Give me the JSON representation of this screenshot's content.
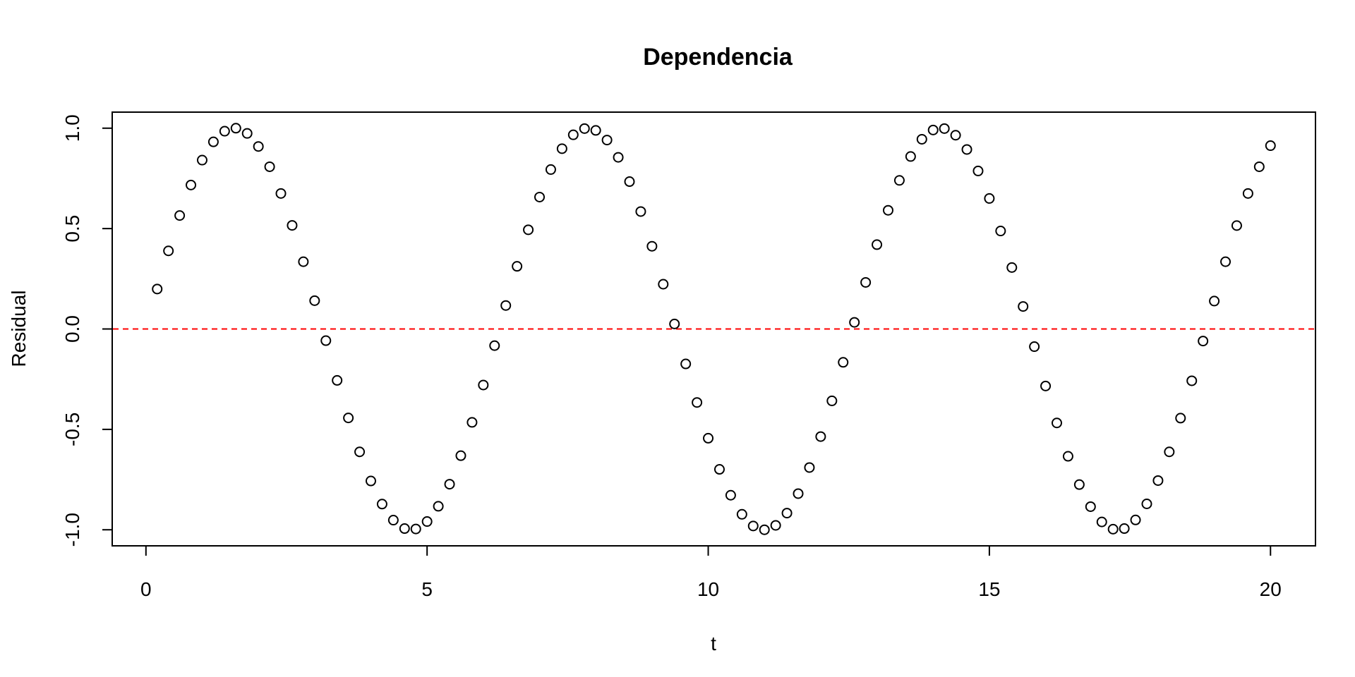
{
  "chart_data": {
    "type": "scatter",
    "title": "Dependencia",
    "xlabel": "t",
    "ylabel": "Residual",
    "xlim": [
      -0.6,
      20.8
    ],
    "ylim": [
      -1.08,
      1.08
    ],
    "x_ticks": [
      0,
      5,
      10,
      15,
      20
    ],
    "x_tick_labels": [
      "0",
      "5",
      "10",
      "15",
      "20"
    ],
    "y_ticks": [
      -1.0,
      -0.5,
      0.0,
      0.5,
      1.0
    ],
    "y_tick_labels": [
      "-1.0",
      "-0.5",
      "0.0",
      "0.5",
      "1.0"
    ],
    "grid": false,
    "reference_line": {
      "y": 0,
      "color": "#ff0000",
      "style": "dashed"
    },
    "point_color": "#000000",
    "series": [
      {
        "x": [
          0.2,
          0.4,
          0.6,
          0.8,
          1.0,
          1.2,
          1.4,
          1.6,
          1.8,
          2.0,
          2.2,
          2.4,
          2.6,
          2.8,
          3.0,
          3.2,
          3.4,
          3.6,
          3.8,
          4.0,
          4.2,
          4.4,
          4.6,
          4.8,
          5.0,
          5.2,
          5.4,
          5.6,
          5.8,
          6.0,
          6.2,
          6.4,
          6.6,
          6.8,
          7.0,
          7.2,
          7.4,
          7.6,
          7.8,
          8.0,
          8.2,
          8.4,
          8.6,
          8.8,
          9.0,
          9.2,
          9.4,
          9.6,
          9.8,
          10.0,
          10.2,
          10.4,
          10.6,
          10.8,
          11.0,
          11.2,
          11.4,
          11.6,
          11.8,
          12.0,
          12.2,
          12.4,
          12.6,
          12.8,
          13.0,
          13.2,
          13.4,
          13.6,
          13.8,
          14.0,
          14.2,
          14.4,
          14.6,
          14.8,
          15.0,
          15.2,
          15.4,
          15.6,
          15.8,
          16.0,
          16.2,
          16.4,
          16.6,
          16.8,
          17.0,
          17.2,
          17.4,
          17.6,
          17.8,
          18.0,
          18.2,
          18.4,
          18.6,
          18.8,
          19.0,
          19.2,
          19.4,
          19.6,
          19.8,
          20.0
        ],
        "y": [
          0.199,
          0.389,
          0.565,
          0.717,
          0.841,
          0.932,
          0.985,
          1.0,
          0.974,
          0.909,
          0.808,
          0.675,
          0.516,
          0.335,
          0.141,
          -0.058,
          -0.256,
          -0.443,
          -0.612,
          -0.757,
          -0.872,
          -0.952,
          -0.994,
          -0.996,
          -0.959,
          -0.883,
          -0.773,
          -0.631,
          -0.465,
          -0.279,
          -0.083,
          0.117,
          0.312,
          0.494,
          0.657,
          0.794,
          0.898,
          0.967,
          0.998,
          0.989,
          0.941,
          0.855,
          0.734,
          0.585,
          0.412,
          0.223,
          0.025,
          -0.174,
          -0.366,
          -0.544,
          -0.699,
          -0.828,
          -0.923,
          -0.981,
          -1.0,
          -0.978,
          -0.917,
          -0.82,
          -0.69,
          -0.536,
          -0.358,
          -0.166,
          0.033,
          0.232,
          0.42,
          0.591,
          0.74,
          0.859,
          0.945,
          0.991,
          0.998,
          0.965,
          0.894,
          0.787,
          0.65,
          0.488,
          0.306,
          0.112,
          -0.088,
          -0.284,
          -0.468,
          -0.634,
          -0.775,
          -0.885,
          -0.961,
          -0.997,
          -0.994,
          -0.951,
          -0.871,
          -0.755,
          -0.612,
          -0.444,
          -0.258,
          -0.06,
          0.139,
          0.335,
          0.515,
          0.675,
          0.808,
          0.913
        ]
      }
    ]
  }
}
